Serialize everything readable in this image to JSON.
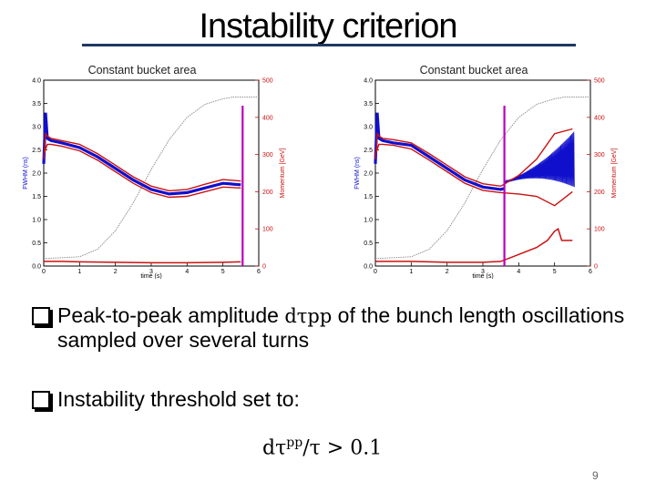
{
  "slide": {
    "title": "Instability criterion",
    "bullet1_pre": "Peak-to-peak amplitude ",
    "bullet1_math": "dτpp",
    "bullet1_post": " of the bunch length oscillations sampled over several turns",
    "bullet2": "Instability threshold set to:",
    "formula_num": "dτ",
    "formula_sup": "pp",
    "formula_rest": "/τ > 0.1",
    "page_number": "9"
  },
  "colors": {
    "fwhm": "#1010cc",
    "envelope": "#cc1010",
    "momentum": "#888888",
    "marker": "#bb00bb",
    "rule": "#1f3864"
  },
  "chart_data": [
    {
      "type": "line",
      "title": "Constant bucket area",
      "xlabel": "time (s)",
      "ylabel": "FWHM (ns)",
      "y2label": "Momentum [GeV]",
      "xlim": [
        0,
        6
      ],
      "ylim": [
        0,
        4.0
      ],
      "y2lim": [
        0,
        500
      ],
      "xticks": [
        "0",
        "1",
        "2",
        "3",
        "4",
        "5",
        "6"
      ],
      "yticks": [
        "0.0",
        "0.5",
        "1.0",
        "1.5",
        "2.0",
        "2.5",
        "3.0",
        "3.5",
        "4.0"
      ],
      "y2ticks": [
        "0",
        "100",
        "200",
        "300",
        "400",
        "500"
      ],
      "marker_x": 5.55,
      "marker_top": 3.45,
      "series": [
        {
          "role": "fwhm",
          "x": [
            0,
            0.05,
            0.1,
            0.2,
            0.5,
            1.0,
            1.5,
            2.0,
            2.5,
            3.0,
            3.5,
            4.0,
            4.5,
            5.0,
            5.5
          ],
          "y": [
            2.2,
            3.3,
            2.75,
            2.7,
            2.65,
            2.55,
            2.35,
            2.1,
            1.85,
            1.65,
            1.55,
            1.58,
            1.68,
            1.78,
            1.75
          ]
        },
        {
          "role": "envelope-upper",
          "x": [
            0,
            0.05,
            0.1,
            0.2,
            0.5,
            1.0,
            1.5,
            2.0,
            2.5,
            3.0,
            3.5,
            4.0,
            4.5,
            5.0,
            5.5
          ],
          "y": [
            2.3,
            2.85,
            2.8,
            2.75,
            2.7,
            2.62,
            2.42,
            2.17,
            1.92,
            1.72,
            1.62,
            1.65,
            1.76,
            1.86,
            1.83
          ]
        },
        {
          "role": "envelope-lower",
          "x": [
            0,
            0.1,
            0.2,
            0.5,
            1.0,
            1.5,
            2.0,
            2.5,
            3.0,
            3.5,
            4.0,
            4.5,
            5.0,
            5.5
          ],
          "y": [
            2.4,
            2.62,
            2.62,
            2.58,
            2.48,
            2.28,
            2.03,
            1.78,
            1.58,
            1.48,
            1.5,
            1.6,
            1.7,
            1.68
          ]
        },
        {
          "role": "peak-to-peak",
          "x": [
            0,
            0.5,
            1.0,
            2.0,
            3.0,
            4.0,
            5.0,
            5.5
          ],
          "y": [
            0.1,
            0.1,
            0.09,
            0.08,
            0.07,
            0.07,
            0.08,
            0.09
          ]
        },
        {
          "role": "momentum",
          "axis": "y2",
          "x": [
            0,
            1.0,
            1.5,
            2.0,
            2.5,
            3.0,
            3.5,
            4.0,
            4.5,
            5.0,
            5.3,
            6.0
          ],
          "y": [
            20,
            25,
            45,
            95,
            170,
            260,
            340,
            400,
            435,
            450,
            455,
            455
          ]
        }
      ]
    },
    {
      "type": "line",
      "title": "Constant bucket area",
      "xlabel": "time (s)",
      "ylabel": "FWHM (ns)",
      "y2label": "Momentum [GeV]",
      "xlim": [
        0,
        6
      ],
      "ylim": [
        0,
        4.0
      ],
      "y2lim": [
        0,
        500
      ],
      "xticks": [
        "0",
        "1",
        "2",
        "3",
        "4",
        "5",
        "6"
      ],
      "yticks": [
        "0.0",
        "0.5",
        "1.0",
        "1.5",
        "2.0",
        "2.5",
        "3.0",
        "3.5",
        "4.0"
      ],
      "y2ticks": [
        "0",
        "100",
        "200",
        "300",
        "400",
        "500"
      ],
      "marker_x": 3.6,
      "marker_top": 3.45,
      "oscillation": {
        "x_start": 3.6,
        "x_end": 5.55,
        "center_start": 1.8,
        "center_end": 2.3,
        "amp_start": 0.02,
        "amp_end": 0.6
      },
      "series": [
        {
          "role": "fwhm",
          "x": [
            0,
            0.05,
            0.1,
            0.2,
            0.5,
            1.0,
            1.5,
            2.0,
            2.5,
            3.0,
            3.5,
            3.6
          ],
          "y": [
            2.2,
            3.3,
            2.75,
            2.7,
            2.65,
            2.6,
            2.35,
            2.1,
            1.85,
            1.7,
            1.65,
            1.67
          ]
        },
        {
          "role": "envelope-upper",
          "x": [
            0,
            0.05,
            0.1,
            0.2,
            0.5,
            1.0,
            1.5,
            2.0,
            2.5,
            3.0,
            3.5,
            4.0,
            4.5,
            5.0,
            5.5
          ],
          "y": [
            2.3,
            2.85,
            2.8,
            2.75,
            2.72,
            2.65,
            2.42,
            2.17,
            1.92,
            1.77,
            1.72,
            1.95,
            2.3,
            2.85,
            2.95
          ]
        },
        {
          "role": "envelope-lower",
          "x": [
            0,
            0.1,
            0.2,
            0.5,
            1.0,
            1.5,
            2.0,
            2.5,
            3.0,
            3.5,
            4.0,
            4.5,
            5.0,
            5.5
          ],
          "y": [
            2.4,
            2.62,
            2.62,
            2.6,
            2.52,
            2.28,
            2.03,
            1.78,
            1.63,
            1.58,
            1.55,
            1.5,
            1.3,
            1.6
          ]
        },
        {
          "role": "peak-to-peak",
          "x": [
            0,
            0.5,
            1.0,
            2.0,
            3.0,
            3.5,
            4.0,
            4.5,
            4.8,
            5.0,
            5.1,
            5.2,
            5.5
          ],
          "y": [
            0.1,
            0.1,
            0.1,
            0.08,
            0.08,
            0.1,
            0.25,
            0.4,
            0.55,
            0.75,
            0.8,
            0.55,
            0.55
          ]
        },
        {
          "role": "momentum",
          "axis": "y2",
          "x": [
            0,
            1.0,
            1.5,
            2.0,
            2.5,
            3.0,
            3.5,
            4.0,
            4.5,
            5.0,
            5.3,
            6.0
          ],
          "y": [
            20,
            25,
            45,
            95,
            170,
            260,
            340,
            400,
            435,
            450,
            455,
            455
          ]
        }
      ]
    }
  ]
}
